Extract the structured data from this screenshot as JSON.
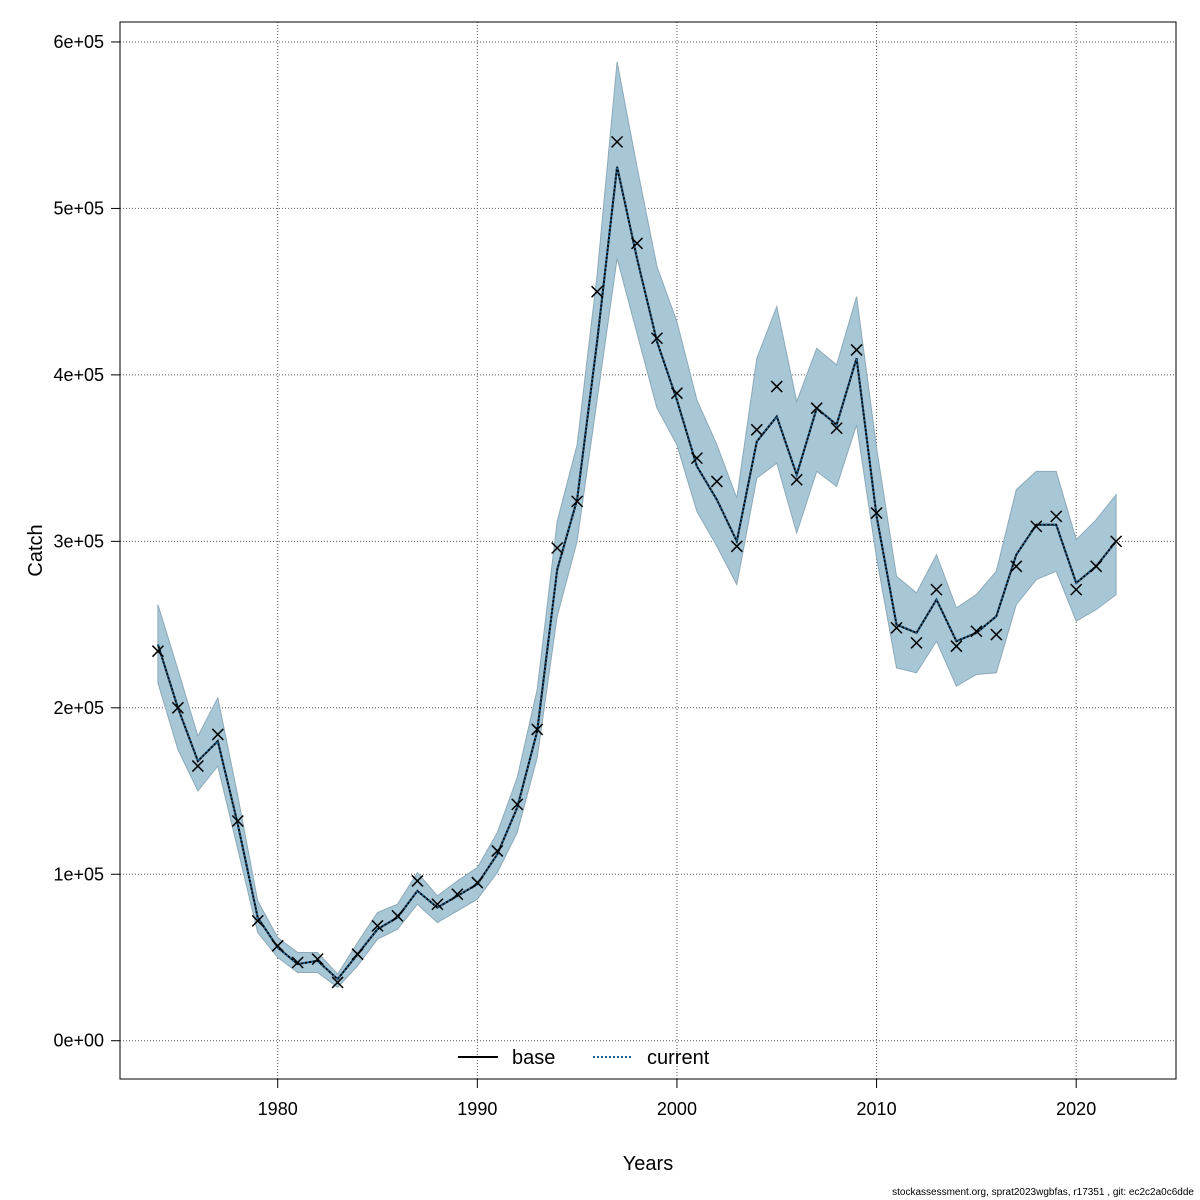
{
  "footer_text": "stockassessment.org, sprat2023wgbfas, r17351 , git: ec2c2a0c6dde",
  "chart_data": {
    "type": "line",
    "xlabel": "Years",
    "ylabel": "Catch",
    "xlim": [
      1972.1,
      2025.0
    ],
    "ylim": [
      -23000,
      612000
    ],
    "x_ticks": [
      1980,
      1990,
      2000,
      2010,
      2020
    ],
    "x_tick_labels": [
      "1980",
      "1990",
      "2000",
      "2010",
      "2020"
    ],
    "y_ticks": [
      0,
      100000,
      200000,
      300000,
      400000,
      500000,
      600000
    ],
    "y_tick_labels": [
      "0e+00",
      "1e+05",
      "2e+05",
      "3e+05",
      "4e+05",
      "5e+05",
      "6e+05"
    ],
    "grid": true,
    "legend_position": "bottom-center",
    "legend": [
      {
        "label": "base",
        "style": "solid",
        "color": "#000000"
      },
      {
        "label": "current",
        "style": "dotted",
        "color": "#1f5f8b"
      }
    ],
    "band_color": "#a7c6d6",
    "band_edge_color": "#8ca9b8",
    "years": [
      1974,
      1975,
      1976,
      1977,
      1978,
      1979,
      1980,
      1981,
      1982,
      1983,
      1984,
      1985,
      1986,
      1987,
      1988,
      1989,
      1990,
      1991,
      1992,
      1993,
      1994,
      1995,
      1996,
      1997,
      1998,
      1999,
      2000,
      2001,
      2002,
      2003,
      2004,
      2005,
      2006,
      2007,
      2008,
      2009,
      2010,
      2011,
      2012,
      2013,
      2014,
      2015,
      2016,
      2017,
      2018,
      2019,
      2020,
      2021,
      2022
    ],
    "observed": [
      234000,
      200000,
      165000,
      184000,
      132000,
      72000,
      57000,
      47000,
      49000,
      35000,
      52000,
      69000,
      75000,
      96000,
      82000,
      88000,
      95000,
      114000,
      142000,
      187000,
      296000,
      324000,
      450000,
      540000,
      479000,
      422000,
      389000,
      350000,
      336000,
      297000,
      367000,
      393000,
      337000,
      380000,
      368000,
      415000,
      317000,
      248000,
      239000,
      271000,
      237000,
      246000,
      244000,
      285000,
      309000,
      315000,
      271000,
      285000,
      300000
    ],
    "fitted": [
      238000,
      200000,
      168000,
      180000,
      130000,
      74000,
      56000,
      46000,
      48000,
      37000,
      52000,
      67000,
      74000,
      90000,
      80000,
      87000,
      94000,
      112000,
      140000,
      186000,
      283000,
      325000,
      420000,
      525000,
      470000,
      420000,
      385000,
      345000,
      325000,
      300000,
      360000,
      375000,
      340000,
      380000,
      370000,
      410000,
      315000,
      250000,
      245000,
      265000,
      240000,
      245000,
      255000,
      292000,
      310000,
      310000,
      275000,
      285000,
      300000
    ],
    "lower": [
      215000,
      175000,
      150000,
      165000,
      115000,
      65000,
      50000,
      41000,
      41000,
      32000,
      45000,
      61000,
      67000,
      82000,
      71000,
      78000,
      85000,
      101000,
      125000,
      170000,
      255000,
      300000,
      385000,
      470000,
      425000,
      380000,
      358000,
      318000,
      297000,
      274000,
      338000,
      347000,
      305000,
      342000,
      333000,
      370000,
      290000,
      224000,
      221000,
      240000,
      213000,
      220000,
      221000,
      262000,
      277000,
      282000,
      252000,
      259000,
      268000
    ],
    "upper": [
      262000,
      223000,
      183000,
      206000,
      147000,
      84000,
      62000,
      53000,
      53000,
      40000,
      59000,
      77000,
      82000,
      101000,
      87000,
      96000,
      104000,
      125000,
      158000,
      211000,
      312000,
      358000,
      460000,
      588000,
      525000,
      465000,
      432000,
      385000,
      358000,
      326000,
      410000,
      441000,
      384000,
      416000,
      406000,
      447000,
      356000,
      279000,
      269000,
      292000,
      260000,
      268000,
      282000,
      331000,
      342000,
      342000,
      301000,
      313000,
      328000
    ]
  }
}
